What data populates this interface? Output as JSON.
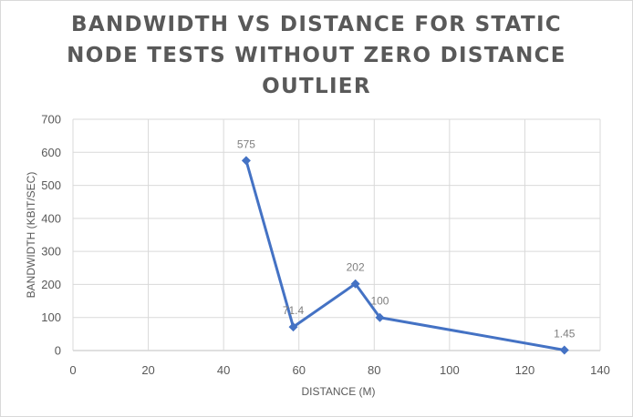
{
  "chart_data": {
    "type": "scatter",
    "title": "Bandwidth vs Distance for static node tests without zero distance outlier",
    "xlabel": "Distance (m)",
    "ylabel": "Bandwidth (kbit/sec)",
    "xlim": [
      0,
      140
    ],
    "ylim": [
      0,
      700
    ],
    "x_ticks": [
      "0",
      "20",
      "40",
      "60",
      "80",
      "100",
      "120",
      "140"
    ],
    "y_ticks": [
      "0",
      "100",
      "200",
      "300",
      "400",
      "500",
      "600",
      "700"
    ],
    "grid": true,
    "legend": "none",
    "series": [
      {
        "x": [
          46,
          58.5,
          75,
          81.5,
          130.5
        ],
        "y": [
          575,
          71.4,
          202,
          100,
          1.45
        ],
        "labels": [
          "575",
          "71.4",
          "202",
          "100",
          "1.45"
        ],
        "color": "#4472c4",
        "marker": "diamond",
        "line": "straight"
      }
    ]
  }
}
